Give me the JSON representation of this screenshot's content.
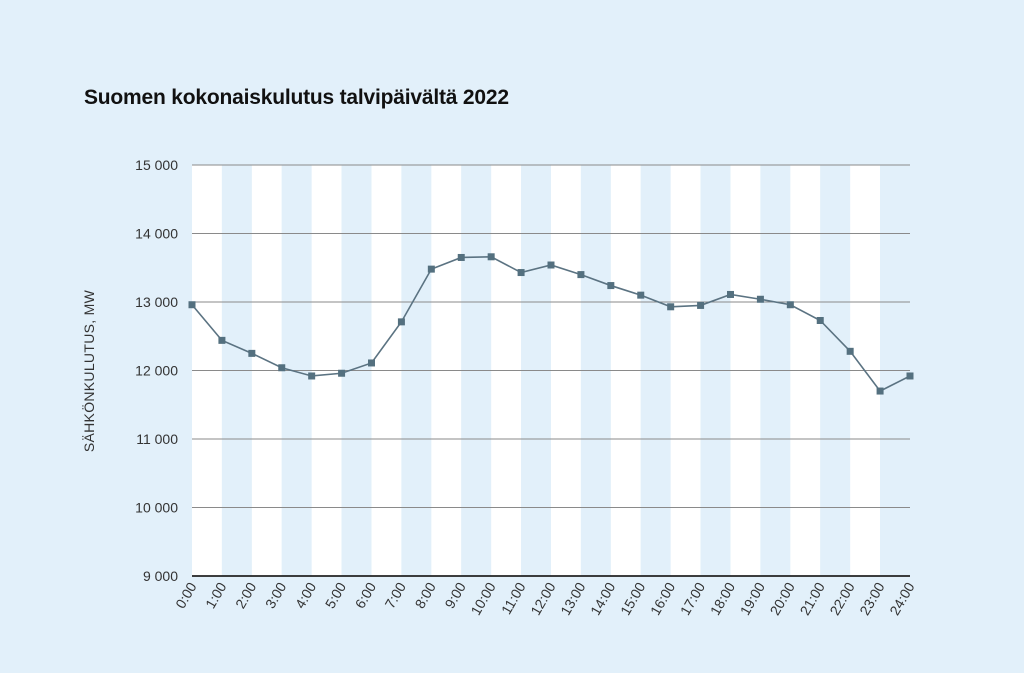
{
  "chart_data": {
    "type": "line",
    "title": "Suomen kokonaiskulutus talvipäivältä 2022",
    "ylabel": "SÄHKÖNKULUTUS, MW",
    "xlabel": "",
    "ylim": [
      9000,
      15000
    ],
    "yticks": [
      9000,
      10000,
      11000,
      12000,
      13000,
      14000,
      15000
    ],
    "ytick_labels": [
      "9 000",
      "10 000",
      "11 000",
      "12 000",
      "13 000",
      "14 000",
      "15 000"
    ],
    "categories": [
      "0:00",
      "1:00",
      "2:00",
      "3:00",
      "4:00",
      "5:00",
      "6:00",
      "7:00",
      "8:00",
      "9:00",
      "10:00",
      "11:00",
      "12:00",
      "13:00",
      "14:00",
      "15:00",
      "16:00",
      "17:00",
      "18:00",
      "19:00",
      "20:00",
      "21:00",
      "22:00",
      "23:00",
      "24:00"
    ],
    "values": [
      12960,
      12440,
      12250,
      12040,
      11920,
      11960,
      12110,
      12710,
      13480,
      13650,
      13660,
      13430,
      13540,
      13400,
      13240,
      13100,
      12930,
      12950,
      13110,
      13040,
      12960,
      12730,
      12280,
      11700,
      11920
    ],
    "grid": true,
    "legend": "none"
  },
  "colors": {
    "background": "#e2f0fa",
    "band_light": "#ffffff",
    "band_tinted": "#e2f0fa",
    "gridline": "#8a8a8a",
    "axis": "#222222",
    "line": "#5b7382",
    "marker": "#54707f"
  }
}
